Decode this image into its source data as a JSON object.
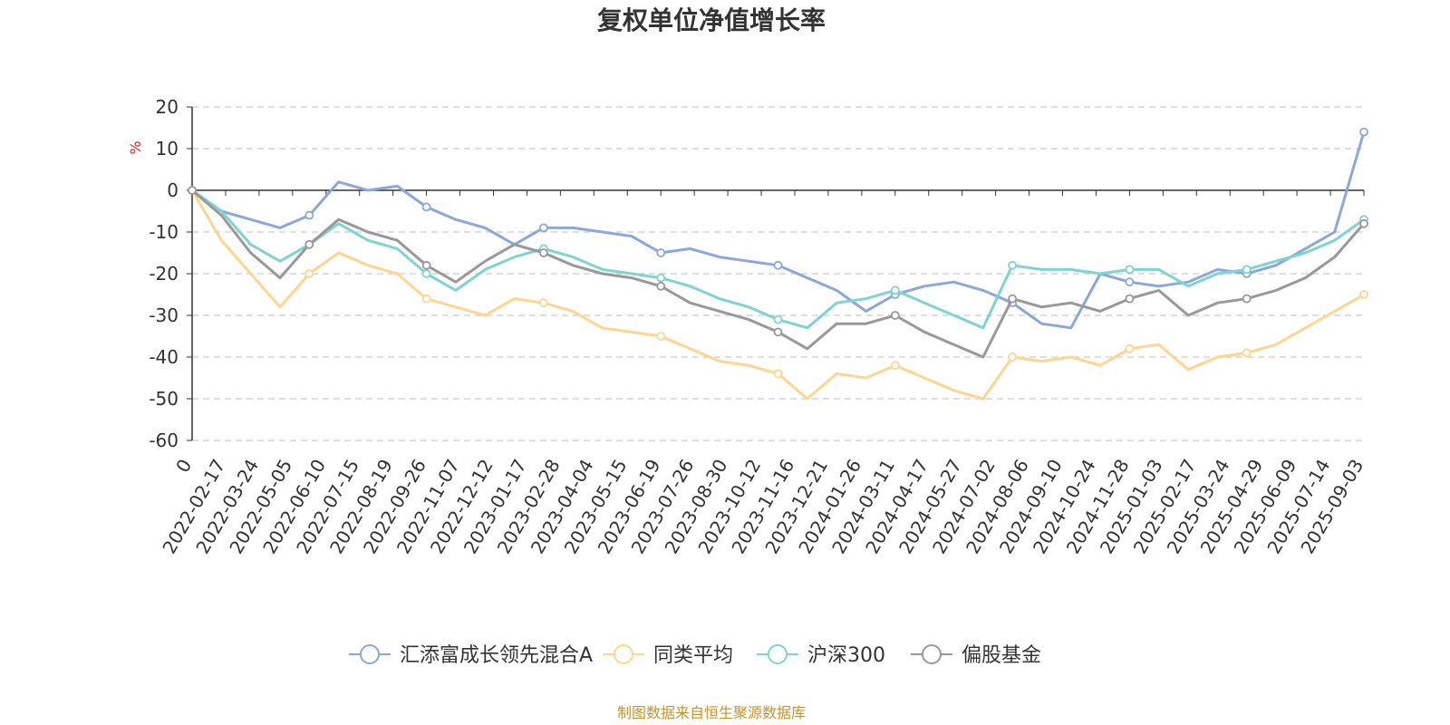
{
  "chart_data": {
    "type": "line",
    "title": "复权单位净值增长率",
    "ylabel": "%",
    "ylim": [
      -60,
      20
    ],
    "yticks": [
      20,
      10,
      0,
      -10,
      -20,
      -30,
      -40,
      -50,
      -60
    ],
    "grid": true,
    "legend_position": "bottom",
    "x_tick_labels": [
      "0",
      "2022-02-17",
      "2022-03-24",
      "2022-05-05",
      "2022-06-10",
      "2022-07-15",
      "2022-08-19",
      "2022-09-26",
      "2022-11-07",
      "2022-12-12",
      "2023-01-17",
      "2023-02-28",
      "2023-04-04",
      "2023-05-15",
      "2023-06-19",
      "2023-07-26",
      "2023-08-30",
      "2023-10-12",
      "2023-11-16",
      "2023-12-21",
      "2024-01-26",
      "2024-03-11",
      "2024-04-17",
      "2024-05-27",
      "2024-07-02",
      "2024-08-06",
      "2024-09-10",
      "2024-10-24",
      "2024-11-28",
      "2025-01-03",
      "2025-02-17",
      "2025-03-24",
      "2025-04-29",
      "2025-06-09",
      "2025-07-14",
      "2025-09-03"
    ],
    "series": [
      {
        "name": "汇添富成长领先混合A",
        "color": "#8ba8d8",
        "values": [
          0,
          -5,
          -7,
          -9,
          -6,
          2,
          0,
          1,
          -4,
          -7,
          -9,
          -13,
          -9,
          -9,
          -10,
          -11,
          -15,
          -14,
          -16,
          -17,
          -18,
          -21,
          -24,
          -29,
          -25,
          -23,
          -22,
          -24,
          -27,
          -32,
          -33,
          -20,
          -22,
          -23,
          -22,
          -19,
          -20,
          -18,
          -14,
          -10,
          14
        ]
      },
      {
        "name": "同类平均",
        "color": "#ffd591",
        "values": [
          0,
          -12,
          -20,
          -28,
          -20,
          -15,
          -18,
          -20,
          -26,
          -28,
          -30,
          -26,
          -27,
          -29,
          -33,
          -34,
          -35,
          -38,
          -41,
          -42,
          -44,
          -50,
          -44,
          -45,
          -42,
          -45,
          -48,
          -50,
          -40,
          -41,
          -40,
          -42,
          -38,
          -37,
          -43,
          -40,
          -39,
          -37,
          -33,
          -29,
          -25
        ]
      },
      {
        "name": "沪深300",
        "color": "#7fd3d3",
        "values": [
          0,
          -5,
          -13,
          -17,
          -13,
          -8,
          -12,
          -14,
          -20,
          -24,
          -19,
          -16,
          -14,
          -16,
          -19,
          -20,
          -21,
          -23,
          -26,
          -28,
          -31,
          -33,
          -27,
          -26,
          -24,
          -27,
          -30,
          -33,
          -18,
          -19,
          -19,
          -20,
          -19,
          -19,
          -23,
          -20,
          -19,
          -17,
          -15,
          -12,
          -7
        ]
      },
      {
        "name": "偏股基金",
        "color": "#999999",
        "values": [
          0,
          -6,
          -15,
          -21,
          -13,
          -7,
          -10,
          -12,
          -18,
          -22,
          -17,
          -13,
          -15,
          -18,
          -20,
          -21,
          -23,
          -27,
          -29,
          -31,
          -34,
          -38,
          -32,
          -32,
          -30,
          -34,
          -37,
          -40,
          -26,
          -28,
          -27,
          -29,
          -26,
          -24,
          -30,
          -27,
          -26,
          -24,
          -21,
          -16,
          -8
        ]
      }
    ]
  },
  "source_text": "制图数据来自恒生聚源数据库"
}
